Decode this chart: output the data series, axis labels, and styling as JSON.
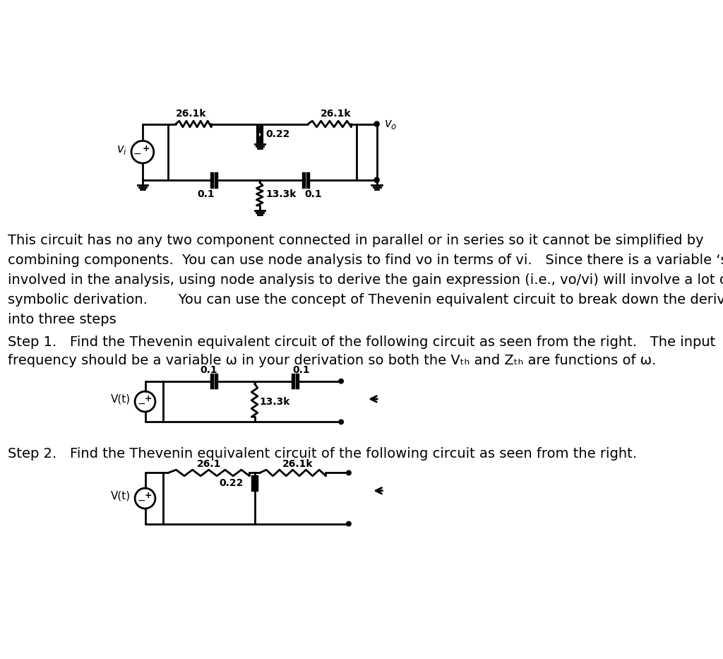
{
  "bg_color": "#ffffff",
  "text_color": "#000000",
  "line_color": "#000000",
  "line_width": 2.0,
  "paragraph1": "This circuit has no any two component connected in parallel or in series so it cannot be simplified by\ncombining components.  You can use node analysis to find vo in terms of vi.   Since there is a variable ‘s’\ninvolved in the analysis, using node analysis to derive the gain expression (i.e., vo/vi) will involve a lot of\nsymbolic derivation.       You can use the concept of Thevenin equivalent circuit to break down the derivation\ninto three steps",
  "step1_text": "Step 1.   Find the Thevenin equivalent circuit of the following circuit as seen from the right.   The input\nfrequency should be a variable ω in your derivation so both the Vₜₕ and Zₜₕ are functions of ω.",
  "step2_text": "Step 2.   Find the Thevenin equivalent circuit of the following circuit as seen from the right.",
  "font_size_body": 14,
  "font_size_label": 12
}
